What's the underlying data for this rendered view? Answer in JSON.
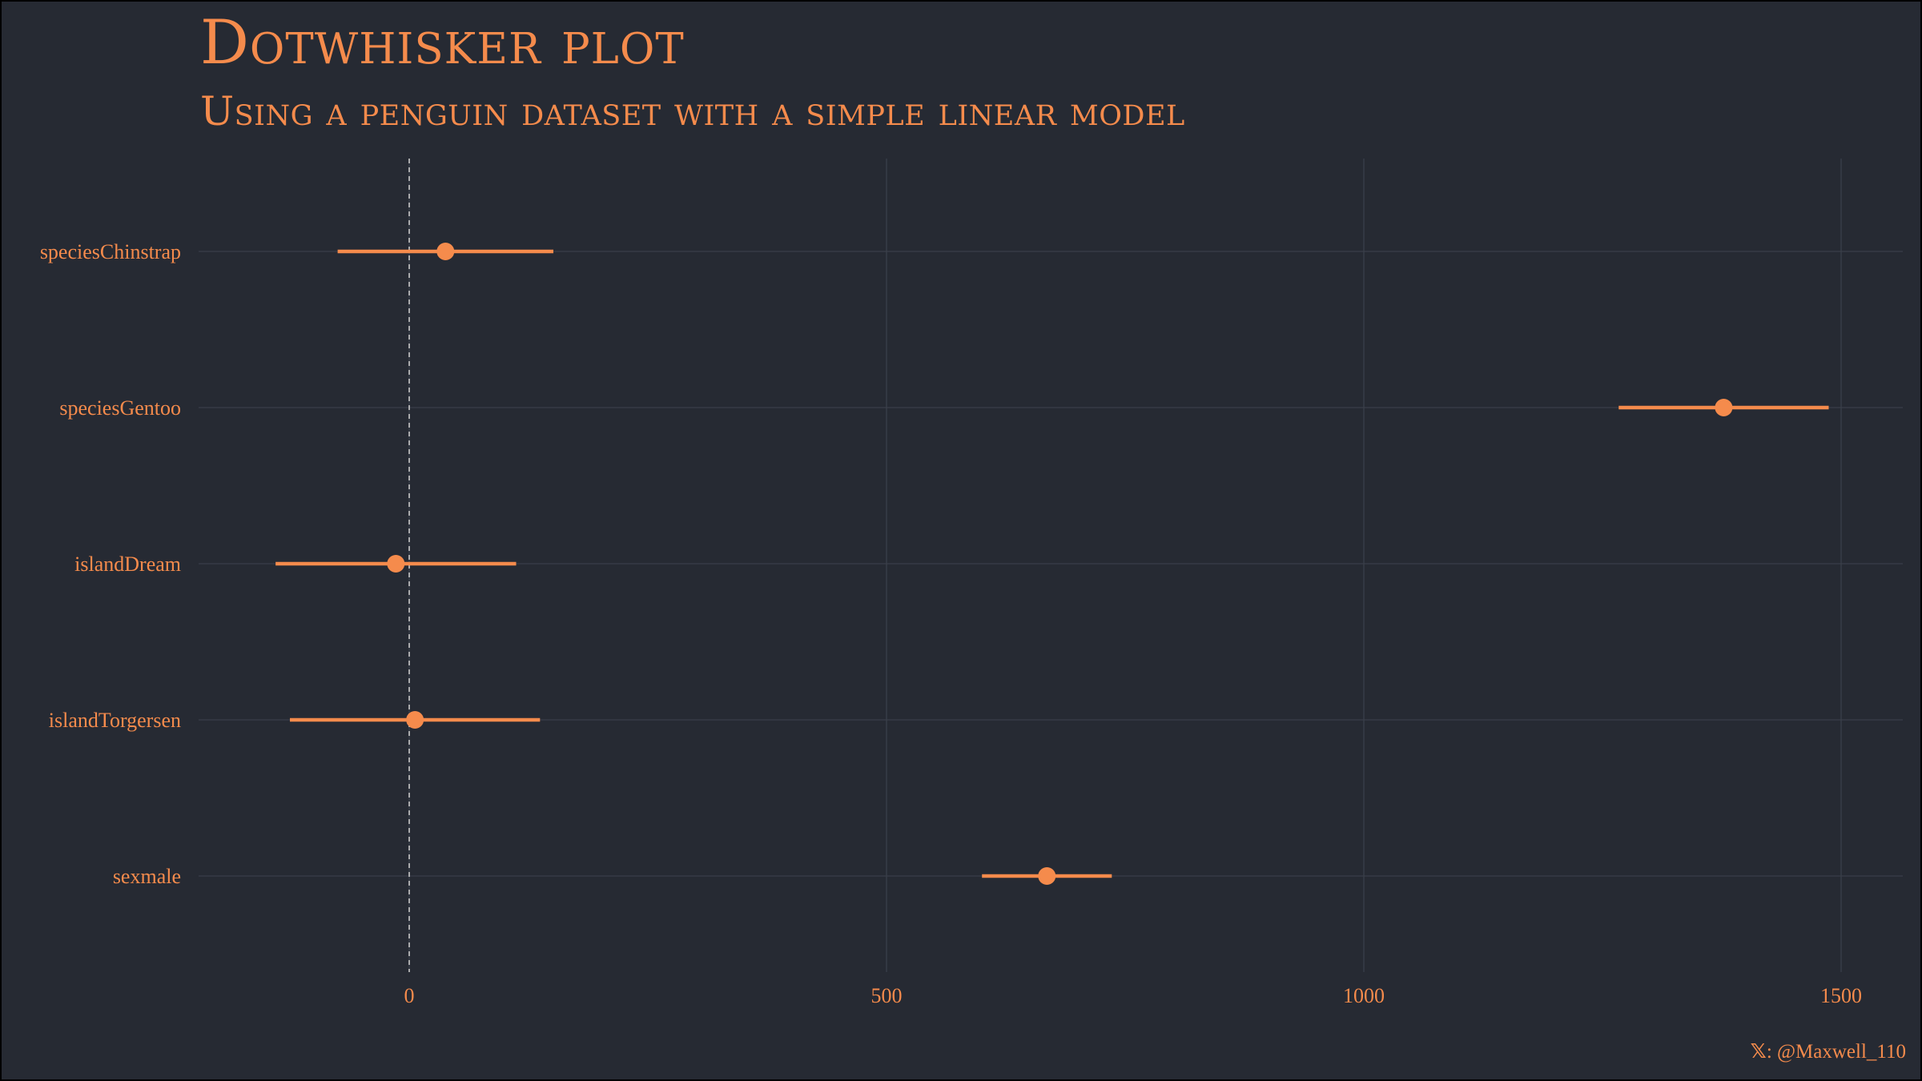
{
  "title": "Dotwhisker plot",
  "subtitle": "Using a penguin dataset with a simple linear model",
  "caption": {
    "icon": "x-logo-icon",
    "icon_glyph": "𝕏",
    "text": ": @Maxwell_110"
  },
  "colors": {
    "background": "#262a33",
    "accent": "#f58b4c",
    "grid": "#3a3f4a",
    "zero_line": "#c9c9c9"
  },
  "chart_data": {
    "type": "dot-whisker",
    "xlabel": "",
    "ylabel": "",
    "xlim": [
      -220,
      1570
    ],
    "x_ticks": [
      0,
      500,
      1000,
      1500
    ],
    "grid": true,
    "zero_reference_line": 0,
    "terms": [
      {
        "label": "speciesChinstrap",
        "estimate": 38,
        "low": -75,
        "high": 151
      },
      {
        "label": "speciesGentoo",
        "estimate": 1377,
        "low": 1267,
        "high": 1487
      },
      {
        "label": "islandDream",
        "estimate": -14,
        "low": -140,
        "high": 112
      },
      {
        "label": "islandTorgersen",
        "estimate": 6,
        "low": -125,
        "high": 137
      },
      {
        "label": "sexmale",
        "estimate": 668,
        "low": 600,
        "high": 736
      }
    ]
  }
}
